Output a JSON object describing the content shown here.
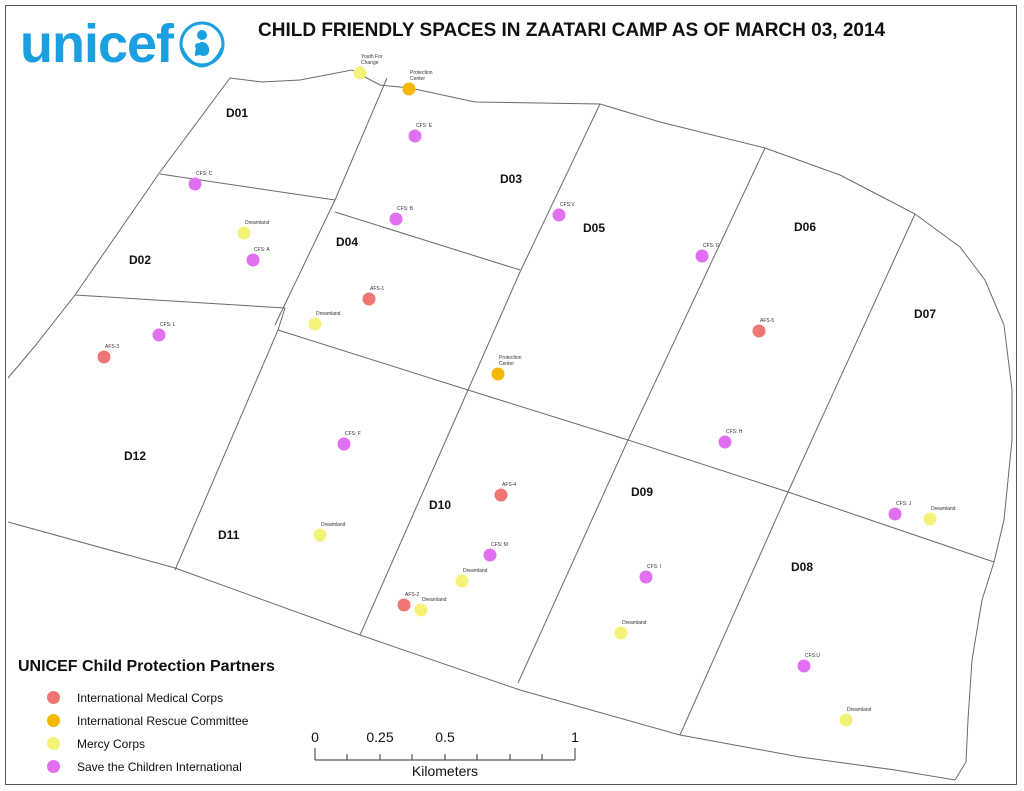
{
  "logo": {
    "text": "unicef"
  },
  "title": "CHILD FRIENDLY SPACES IN ZAATARI CAMP AS OF MARCH 03, 2014",
  "colors": {
    "imc": "#f07575",
    "irc": "#f5b800",
    "mercy": "#f3f378",
    "save": "#e070ef"
  },
  "districts": [
    "D01",
    "D02",
    "D03",
    "D04",
    "D05",
    "D06",
    "D07",
    "D08",
    "D09",
    "D10",
    "D11",
    "D12"
  ],
  "points": [
    {
      "label": "Youth For Change",
      "partner": "mercy"
    },
    {
      "label": "Protection Center",
      "partner": "irc"
    },
    {
      "label": "CFS: E",
      "partner": "save"
    },
    {
      "label": "CFS: C",
      "partner": "save"
    },
    {
      "label": "Dreamland",
      "partner": "mercy"
    },
    {
      "label": "CFS: A",
      "partner": "save"
    },
    {
      "label": "CFS: B",
      "partner": "save"
    },
    {
      "label": "CFS:V",
      "partner": "save"
    },
    {
      "label": "CFS: G",
      "partner": "save"
    },
    {
      "label": "AFS-1",
      "partner": "imc"
    },
    {
      "label": "Dreamland",
      "partner": "mercy"
    },
    {
      "label": "CFS: L",
      "partner": "save"
    },
    {
      "label": "AFS-3",
      "partner": "imc"
    },
    {
      "label": "AFS-5",
      "partner": "imc"
    },
    {
      "label": "Protection Center",
      "partner": "irc"
    },
    {
      "label": "CFS: H",
      "partner": "save"
    },
    {
      "label": "CFS: F",
      "partner": "save"
    },
    {
      "label": "AFS-4",
      "partner": "imc"
    },
    {
      "label": "CFS: J",
      "partner": "save"
    },
    {
      "label": "Dreamland",
      "partner": "mercy"
    },
    {
      "label": "Dreamland",
      "partner": "mercy"
    },
    {
      "label": "CFS: M",
      "partner": "save"
    },
    {
      "label": "Dreamland",
      "partner": "mercy"
    },
    {
      "label": "CFS: I",
      "partner": "save"
    },
    {
      "label": "AFS-2",
      "partner": "imc"
    },
    {
      "label": "Dreamland",
      "partner": "mercy"
    },
    {
      "label": "Dreamland",
      "partner": "mercy"
    },
    {
      "label": "CFS:U",
      "partner": "save"
    },
    {
      "label": "Dreamland",
      "partner": "mercy"
    }
  ],
  "legend": {
    "title": "UNICEF Child Protection Partners",
    "items": [
      {
        "key": "imc",
        "label": "International Medical Corps",
        "color": "#f07575"
      },
      {
        "key": "irc",
        "label": "International Rescue Committee",
        "color": "#f5b800"
      },
      {
        "key": "mercy",
        "label": "Mercy Corps",
        "color": "#f3f378"
      },
      {
        "key": "save",
        "label": "Save the Children International",
        "color": "#e070ef"
      }
    ]
  },
  "scale": {
    "ticks": [
      "0",
      "0.25",
      "0.5",
      "1"
    ],
    "unit": "Kilometers"
  }
}
